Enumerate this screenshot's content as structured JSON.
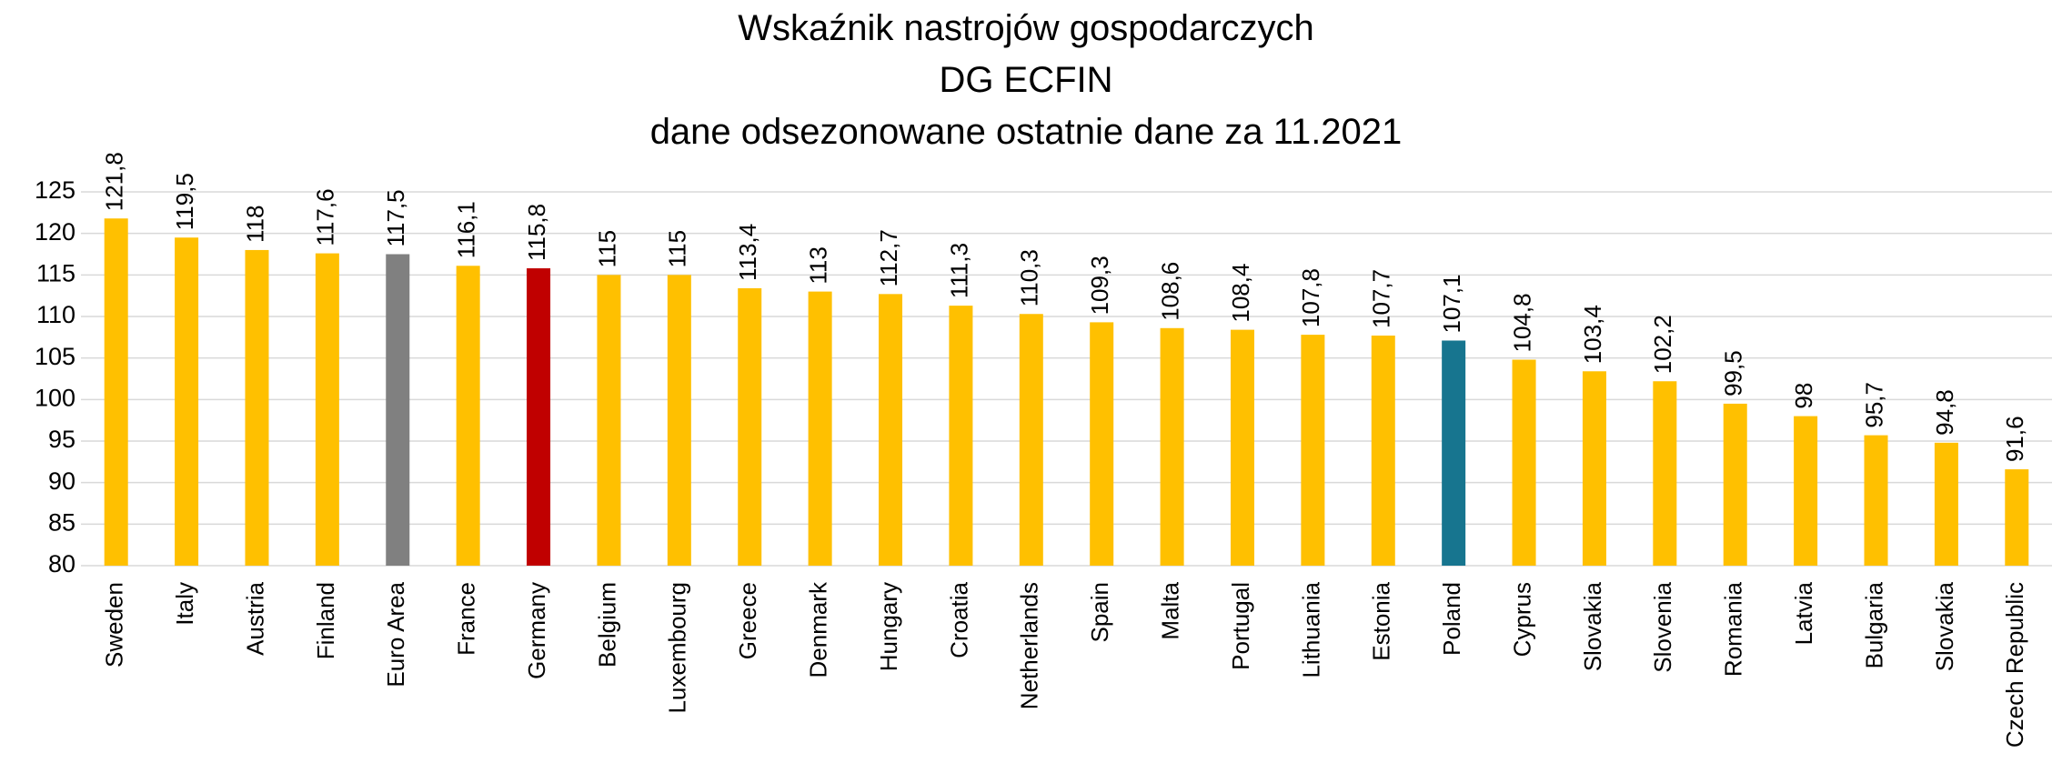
{
  "chart_data": {
    "type": "bar",
    "title": [
      "Wskaźnik nastrojów gospodarczych",
      "DG ECFIN",
      "dane odsezonowane ostatnie dane za 11.2021"
    ],
    "categories": [
      "Sweden",
      "Italy",
      "Austria",
      "Finland",
      "Euro Area",
      "France",
      "Germany",
      "Belgium",
      "Luxembourg",
      "Greece",
      "Denmark",
      "Hungary",
      "Croatia",
      "Netherlands",
      "Spain",
      "Malta",
      "Portugal",
      "Lithuania",
      "Estonia",
      "Poland",
      "Cyprus",
      "Slovakia",
      "Slovenia",
      "Romania",
      "Latvia",
      "Bulgaria",
      "Slovakia",
      "Czech Republic"
    ],
    "values": [
      121.8,
      119.5,
      118,
      117.6,
      117.5,
      116.1,
      115.8,
      115,
      115,
      113.4,
      113,
      112.7,
      111.3,
      110.3,
      109.3,
      108.6,
      108.4,
      107.8,
      107.7,
      107.1,
      104.8,
      103.4,
      102.2,
      99.5,
      98,
      95.7,
      94.8,
      91.6
    ],
    "value_labels": [
      "121,8",
      "119,5",
      "118",
      "117,6",
      "117,5",
      "116,1",
      "115,8",
      "115",
      "115",
      "113,4",
      "113",
      "112,7",
      "111,3",
      "110,3",
      "109,3",
      "108,6",
      "108,4",
      "107,8",
      "107,7",
      "107,1",
      "104,8",
      "103,4",
      "102,2",
      "99,5",
      "98",
      "95,7",
      "94,8",
      "91,6"
    ],
    "colors": [
      "#ffc000",
      "#ffc000",
      "#ffc000",
      "#ffc000",
      "#808080",
      "#ffc000",
      "#c00000",
      "#ffc000",
      "#ffc000",
      "#ffc000",
      "#ffc000",
      "#ffc000",
      "#ffc000",
      "#ffc000",
      "#ffc000",
      "#ffc000",
      "#ffc000",
      "#ffc000",
      "#ffc000",
      "#17758f",
      "#ffc000",
      "#ffc000",
      "#ffc000",
      "#ffc000",
      "#ffc000",
      "#ffc000",
      "#ffc000",
      "#ffc000"
    ],
    "ylim": [
      80,
      125
    ],
    "yticks": [
      80,
      85,
      90,
      95,
      100,
      105,
      110,
      115,
      120,
      125
    ],
    "grid": true
  }
}
